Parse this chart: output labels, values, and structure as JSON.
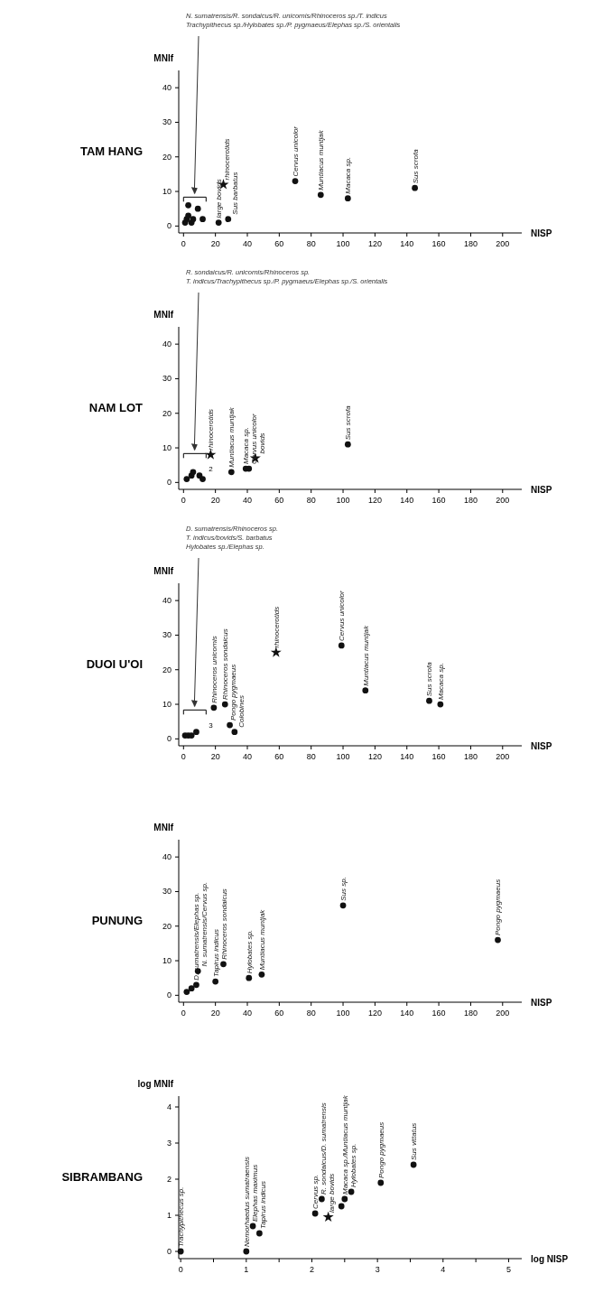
{
  "chart_data": [
    {
      "type": "scatter",
      "title": "TAM HANG",
      "xlabel": "NISP",
      "ylabel": "MNIf",
      "xlim": [
        -3,
        212
      ],
      "ylim": [
        -2,
        45
      ],
      "xticks": [
        0,
        20,
        40,
        60,
        80,
        100,
        120,
        140,
        160,
        180,
        200
      ],
      "yticks": [
        0,
        10,
        20,
        30,
        40
      ],
      "grid": false,
      "series": [
        {
          "type": "scatter",
          "marker": "circle",
          "color": "#111111",
          "x": [
            1,
            2,
            3,
            3,
            5,
            6,
            9,
            12,
            22,
            28,
            70,
            86,
            103,
            145
          ],
          "values": [
            1,
            2,
            6,
            3,
            1,
            2,
            5,
            2,
            1,
            2,
            13,
            9,
            8,
            11
          ]
        },
        {
          "type": "scatter",
          "marker": "star",
          "color": "#111111",
          "x": [
            25
          ],
          "values": [
            12
          ]
        }
      ],
      "annotations": [
        "N. sumatrensis/R. sondaicus/R. unicornis/Rhinoceros sp./T. indicus",
        "Trachypithecus sp./Hylobates sp./P. pygmaeus/Elephas sp./S. orientalis",
        {
          "text": "large bovids",
          "x": 22,
          "y": 1
        },
        {
          "text": "rhinocerotids",
          "x": 25,
          "y": 12
        },
        {
          "text": "Sus barbatus",
          "x": 28,
          "y": 2
        },
        {
          "text": "Cervus unicolor",
          "x": 70,
          "y": 13
        },
        {
          "text": "Muntiacus muntjak",
          "x": 86,
          "y": 9
        },
        {
          "text": "Macaca sp.",
          "x": 103,
          "y": 8
        },
        {
          "text": "Sus scrofa",
          "x": 145,
          "y": 11
        }
      ]
    },
    {
      "type": "scatter",
      "title": "NAM LOT",
      "xlabel": "NISP",
      "ylabel": "MNIf",
      "xlim": [
        -3,
        212
      ],
      "ylim": [
        -2,
        45
      ],
      "xticks": [
        0,
        20,
        40,
        60,
        80,
        100,
        120,
        140,
        160,
        180,
        200
      ],
      "yticks": [
        0,
        10,
        20,
        30,
        40
      ],
      "grid": false,
      "series": [
        {
          "type": "scatter",
          "marker": "circle",
          "color": "#111111",
          "x": [
            2,
            5,
            6,
            10,
            12,
            30,
            39,
            41,
            103
          ],
          "values": [
            1,
            2,
            3,
            2,
            1,
            3,
            4,
            4,
            11
          ]
        },
        {
          "type": "scatter",
          "marker": "star",
          "color": "#111111",
          "x": [
            17,
            45
          ],
          "values": [
            8,
            7
          ]
        }
      ],
      "annotations": [
        "R. sondaicus/R. unicornis/Rhinoceros sp.",
        "T. indicus/Trachypithecus sp./P. pygmaeus/Elephas sp./S. orientalis",
        "2",
        {
          "text": "rhinocerotids",
          "x": 17,
          "y": 8
        },
        {
          "text": "Muntiacus muntjak",
          "x": 30,
          "y": 3
        },
        {
          "text": "Macaca sp.",
          "x": 39,
          "y": 4
        },
        {
          "text": "Cervus unicolor",
          "x": 41,
          "y": 4
        },
        {
          "text": "bovids",
          "x": 45,
          "y": 7
        },
        {
          "text": "Sus scrofa",
          "x": 103,
          "y": 11
        }
      ]
    },
    {
      "type": "scatter",
      "title": "DUOI U'OI",
      "xlabel": "NISP",
      "ylabel": "MNIf",
      "xlim": [
        -3,
        212
      ],
      "ylim": [
        -2,
        45
      ],
      "xticks": [
        0,
        20,
        40,
        60,
        80,
        100,
        120,
        140,
        160,
        180,
        200
      ],
      "yticks": [
        0,
        10,
        20,
        30,
        40
      ],
      "grid": false,
      "series": [
        {
          "type": "scatter",
          "marker": "circle",
          "color": "#111111",
          "x": [
            1,
            3,
            5,
            8,
            19,
            26,
            29,
            32,
            99,
            114,
            154,
            161
          ],
          "values": [
            1,
            1,
            1,
            2,
            9,
            10,
            4,
            2,
            27,
            14,
            11,
            10
          ]
        },
        {
          "type": "scatter",
          "marker": "star",
          "color": "#111111",
          "x": [
            58
          ],
          "values": [
            25
          ]
        }
      ],
      "annotations": [
        "D. sumatrensis/Rhinoceros sp.",
        "T. indicus/bovids/S. barbatus",
        "Hylobates sp./Elephas sp.",
        "3",
        {
          "text": "Rhinoceros unicornis",
          "x": 19,
          "y": 9
        },
        {
          "text": "Rhinoceros sondaicus",
          "x": 26,
          "y": 10
        },
        {
          "text": "Pongo pygmaeus",
          "x": 29,
          "y": 4
        },
        {
          "text": "Colobines",
          "x": 32,
          "y": 2
        },
        {
          "text": "rhinocerotids",
          "x": 58,
          "y": 25
        },
        {
          "text": "Cervus unicolor",
          "x": 99,
          "y": 27
        },
        {
          "text": "Muntiacus muntjak",
          "x": 114,
          "y": 14
        },
        {
          "text": "Sus scrofa",
          "x": 154,
          "y": 11
        },
        {
          "text": "Macaca sp.",
          "x": 161,
          "y": 10
        }
      ]
    },
    {
      "type": "scatter",
      "title": "PUNUNG",
      "xlabel": "NISP",
      "ylabel": "MNIf",
      "xlim": [
        -3,
        212
      ],
      "ylim": [
        -2,
        45
      ],
      "xticks": [
        0,
        20,
        40,
        60,
        80,
        100,
        120,
        140,
        160,
        180,
        200
      ],
      "yticks": [
        0,
        10,
        20,
        30,
        40
      ],
      "grid": false,
      "series": [
        {
          "type": "scatter",
          "marker": "circle",
          "color": "#111111",
          "x": [
            2,
            5,
            8,
            9,
            20,
            25,
            41,
            49,
            100,
            197
          ],
          "values": [
            1,
            2,
            3,
            7,
            4,
            9,
            5,
            6,
            26,
            16
          ]
        }
      ],
      "annotations": [
        {
          "text": "D. sumatrensis/Elephas sp.",
          "x": 8,
          "y": 3
        },
        {
          "text": "N. sumatrensis/Cervus sp.",
          "x": 9,
          "y": 7
        },
        {
          "text": "Tapirus indicus",
          "x": 20,
          "y": 4
        },
        {
          "text": "Rhinoceros sondaicus",
          "x": 25,
          "y": 9
        },
        {
          "text": "Hylobates sp.",
          "x": 41,
          "y": 5
        },
        {
          "text": "Muntiacus muntjak",
          "x": 49,
          "y": 6
        },
        {
          "text": "Sus sp.",
          "x": 100,
          "y": 26
        },
        {
          "text": "Pongo pygmaeus",
          "x": 197,
          "y": 16
        }
      ]
    },
    {
      "type": "scatter",
      "title": "SIBRAMBANG",
      "xlabel": "log NISP",
      "ylabel": "log MNIf",
      "xlim": [
        -0.03,
        5.2
      ],
      "ylim": [
        -0.2,
        4.3
      ],
      "xticks": [
        0,
        {
          "value": 0.5,
          "label": null
        },
        1,
        {
          "value": 1.5,
          "label": null
        },
        2,
        {
          "value": 2.5,
          "label": null
        },
        3,
        {
          "value": 3.5,
          "label": null
        },
        4,
        {
          "value": 4.5,
          "label": null
        },
        5
      ],
      "yticks": [
        0,
        1,
        2,
        3,
        4
      ],
      "grid": false,
      "series": [
        {
          "type": "scatter",
          "marker": "circle",
          "color": "#111111",
          "x": [
            0,
            1,
            1.1,
            1.2,
            2.05,
            2.15,
            2.45,
            2.5,
            2.6,
            3.05,
            3.55
          ],
          "values": [
            0,
            0,
            0.7,
            0.5,
            1.05,
            1.45,
            1.25,
            1.45,
            1.65,
            1.9,
            2.4
          ]
        },
        {
          "type": "scatter",
          "marker": "star",
          "color": "#111111",
          "x": [
            2.25
          ],
          "values": [
            0.95
          ]
        }
      ],
      "annotations": [
        {
          "text": "Trachypithecus sp.",
          "x": 0,
          "y": 0
        },
        {
          "text": "Nemorhaedus sumatraensis",
          "x": 1,
          "y": 0
        },
        {
          "text": "Elephas maximus",
          "x": 1.1,
          "y": 0.7
        },
        {
          "text": "Tapirus indicus",
          "x": 1.2,
          "y": 0.5
        },
        {
          "text": "Cervus sp.",
          "x": 2.05,
          "y": 1.05
        },
        {
          "text": "R. sondaicus/D. sumatrensis",
          "x": 2.15,
          "y": 1.45
        },
        {
          "text": "large bovids",
          "x": 2.25,
          "y": 0.95
        },
        {
          "text": "Macaca sp./Muntiacus muntjak",
          "x": 2.5,
          "y": 1.45
        },
        {
          "text": "Hylobates sp.",
          "x": 2.6,
          "y": 1.65
        },
        {
          "text": "Pongo pygmaeus",
          "x": 3.05,
          "y": 1.9
        },
        {
          "text": "Sus vittatus",
          "x": 3.55,
          "y": 2.4
        }
      ]
    }
  ]
}
